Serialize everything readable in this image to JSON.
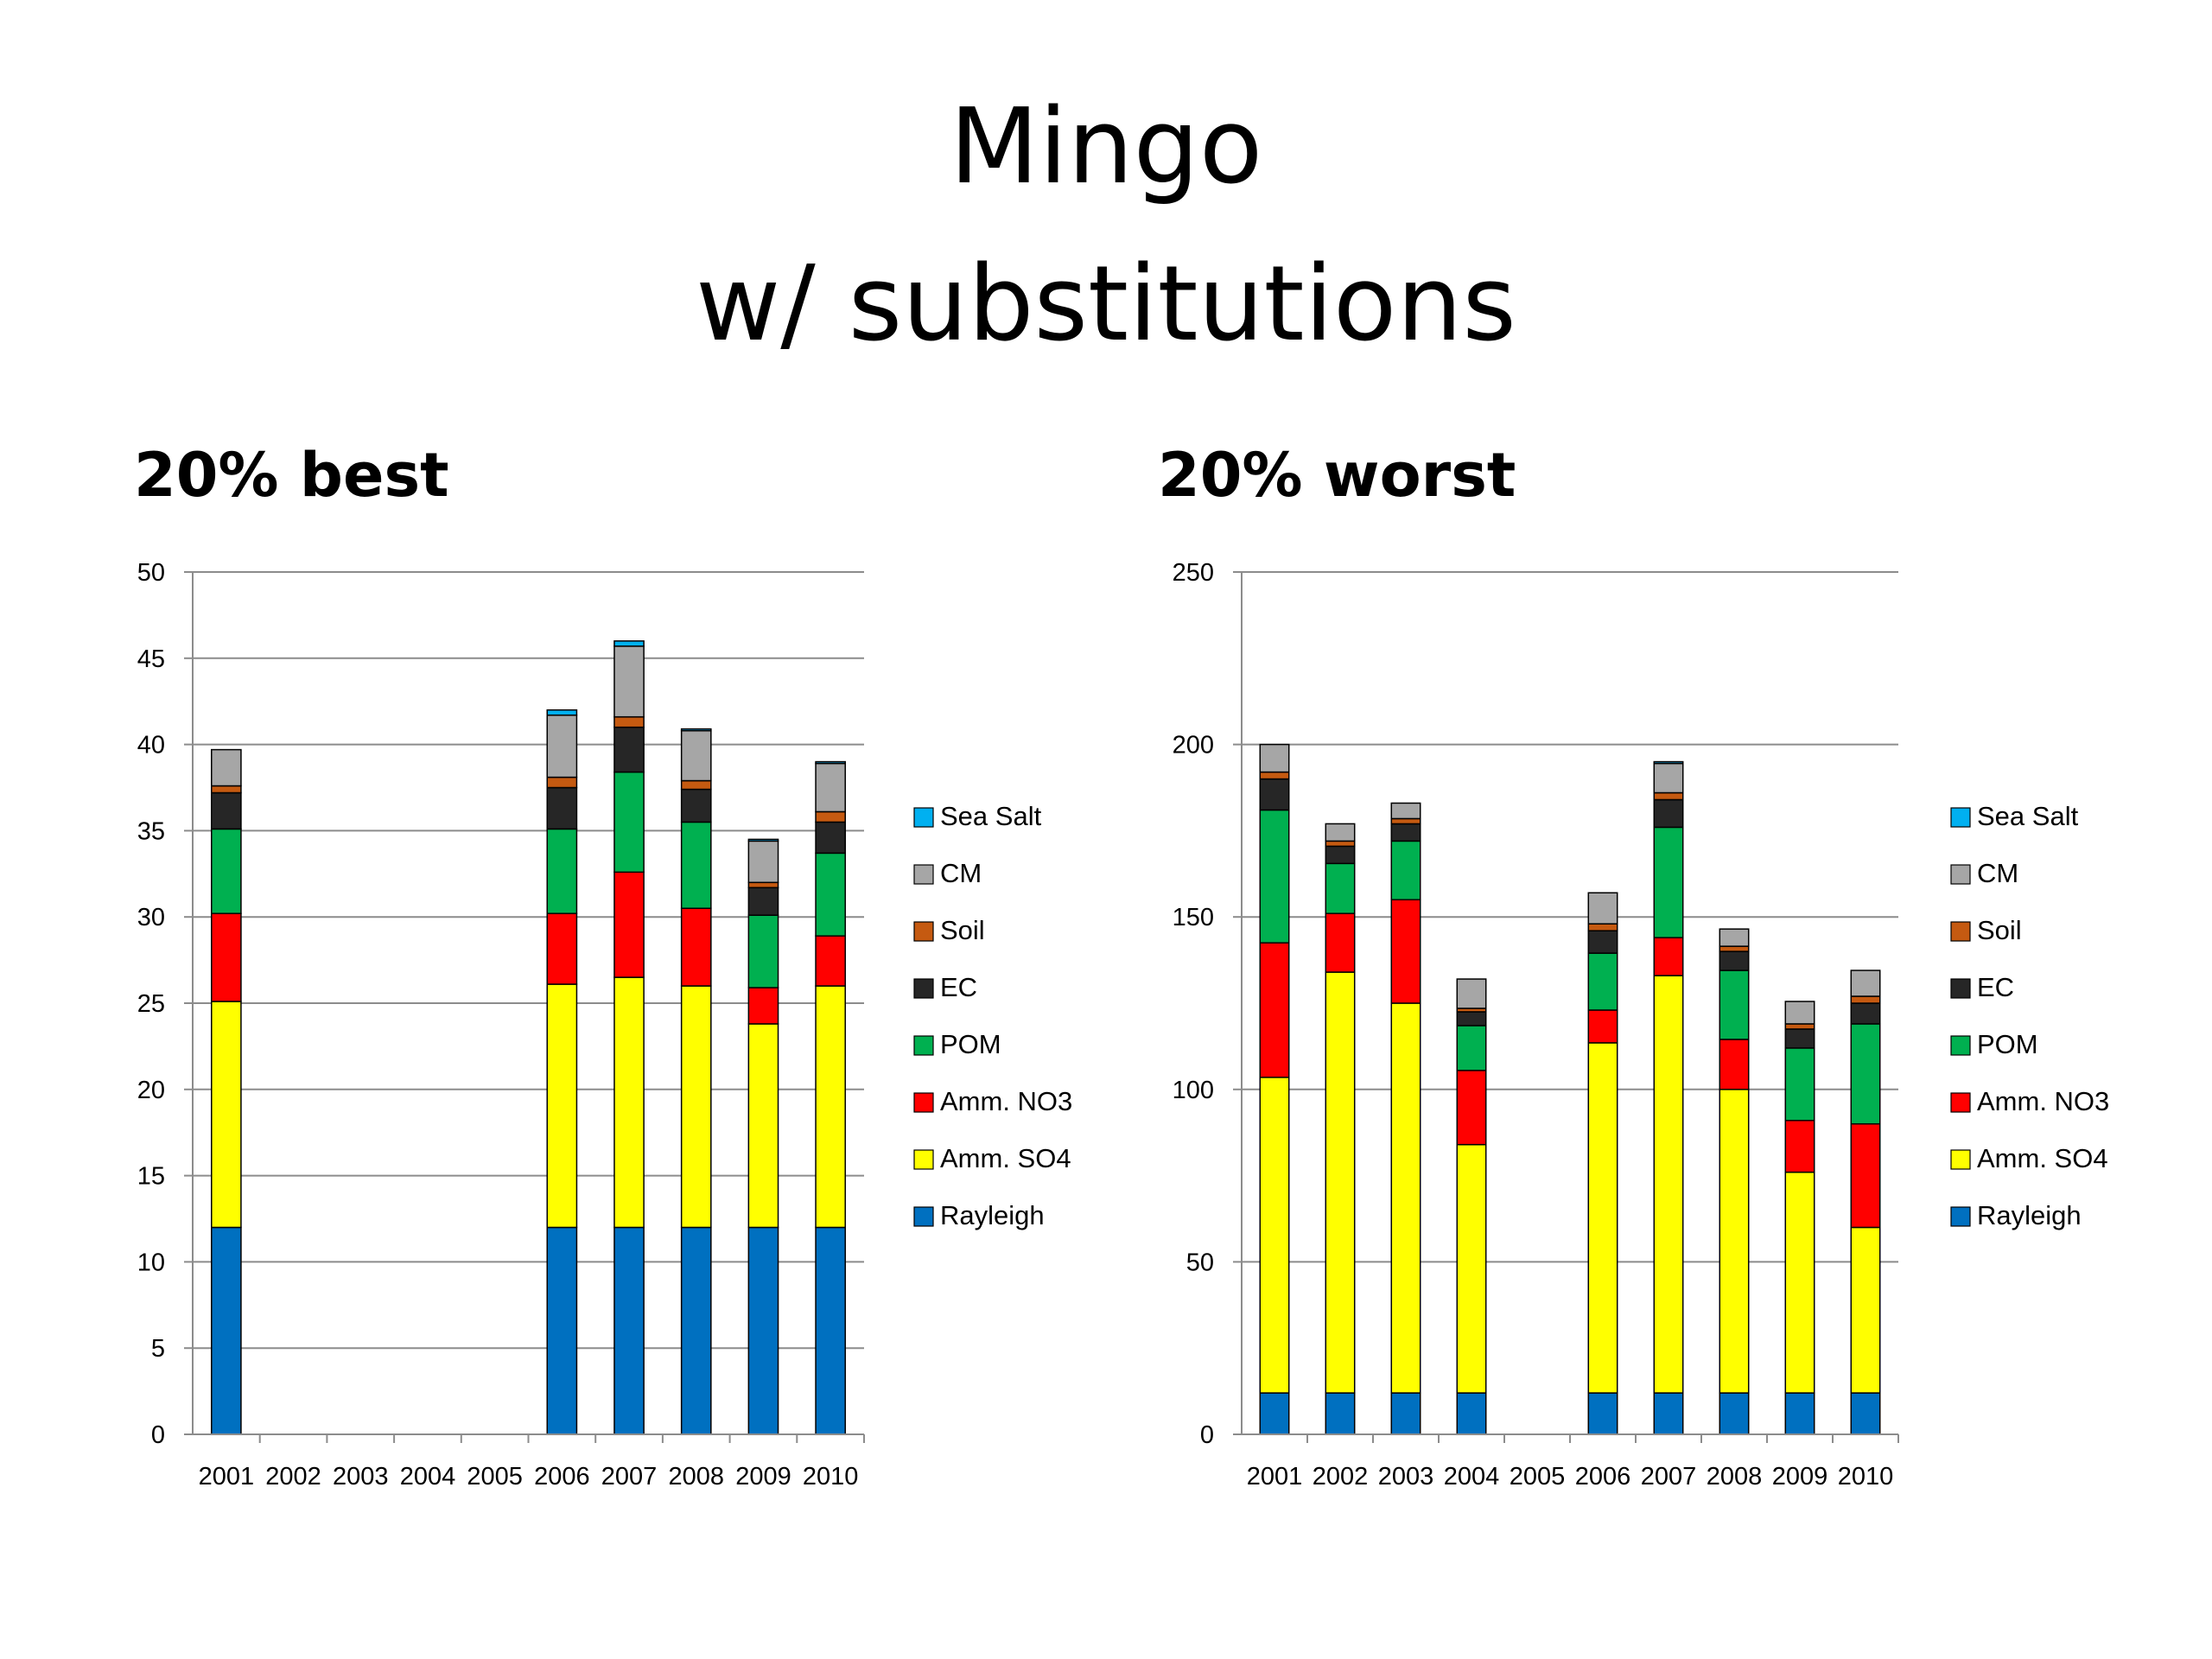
{
  "title_line1": "Mingo",
  "title_line2": "w/ substitutions",
  "chart_data": [
    {
      "type": "bar",
      "stacked": true,
      "title": "20% best",
      "categories": [
        "2001",
        "2002",
        "2003",
        "2004",
        "2005",
        "2006",
        "2007",
        "2008",
        "2009",
        "2010"
      ],
      "ylim": [
        0,
        50
      ],
      "yticks": [
        0,
        5,
        10,
        15,
        20,
        25,
        30,
        35,
        40,
        45,
        50
      ],
      "grid": true,
      "legend_position": "right",
      "series": [
        {
          "name": "Rayleigh",
          "color": "#0070C0",
          "values": [
            12,
            null,
            null,
            null,
            null,
            12,
            12,
            12,
            12,
            12
          ]
        },
        {
          "name": "Amm. SO4",
          "color": "#FFFF00",
          "values": [
            13.1,
            null,
            null,
            null,
            null,
            14.1,
            14.5,
            14.0,
            11.8,
            14.0
          ]
        },
        {
          "name": "Amm. NO3",
          "color": "#FF0000",
          "values": [
            5.1,
            null,
            null,
            null,
            null,
            4.1,
            6.1,
            4.5,
            2.1,
            2.9
          ]
        },
        {
          "name": "POM",
          "color": "#00B050",
          "values": [
            4.9,
            null,
            null,
            null,
            null,
            4.9,
            5.8,
            5.0,
            4.2,
            4.8
          ]
        },
        {
          "name": "EC",
          "color": "#262626",
          "values": [
            2.1,
            null,
            null,
            null,
            null,
            2.4,
            2.6,
            1.9,
            1.6,
            1.8
          ]
        },
        {
          "name": "Soil",
          "color": "#C55A11",
          "values": [
            0.4,
            null,
            null,
            null,
            null,
            0.6,
            0.6,
            0.5,
            0.3,
            0.6
          ]
        },
        {
          "name": "CM",
          "color": "#A6A6A6",
          "values": [
            2.1,
            null,
            null,
            null,
            null,
            3.6,
            4.1,
            2.9,
            2.4,
            2.8
          ]
        },
        {
          "name": "Sea Salt",
          "color": "#00B0F0",
          "values": [
            0,
            null,
            null,
            null,
            null,
            0.3,
            0.3,
            0.1,
            0.1,
            0.1
          ]
        }
      ]
    },
    {
      "type": "bar",
      "stacked": true,
      "title": "20% worst",
      "categories": [
        "2001",
        "2002",
        "2003",
        "2004",
        "2005",
        "2006",
        "2007",
        "2008",
        "2009",
        "2010"
      ],
      "ylim": [
        0,
        250
      ],
      "yticks": [
        0,
        50,
        100,
        150,
        200,
        250
      ],
      "grid": true,
      "legend_position": "right",
      "series": [
        {
          "name": "Rayleigh",
          "color": "#0070C0",
          "values": [
            12,
            12,
            12,
            12,
            null,
            12,
            12,
            12,
            12,
            12
          ]
        },
        {
          "name": "Amm. SO4",
          "color": "#FFFF00",
          "values": [
            91.5,
            122,
            113,
            72,
            null,
            101.5,
            121,
            88,
            64,
            48
          ]
        },
        {
          "name": "Amm. NO3",
          "color": "#FF0000",
          "values": [
            39,
            17,
            30,
            21.5,
            null,
            9.5,
            11,
            14.5,
            15,
            30
          ]
        },
        {
          "name": "POM",
          "color": "#00B050",
          "values": [
            38.5,
            14.5,
            17,
            13,
            null,
            16.5,
            32,
            20,
            21,
            29
          ]
        },
        {
          "name": "EC",
          "color": "#262626",
          "values": [
            9,
            5,
            5,
            4,
            null,
            6.5,
            8,
            5.5,
            5.5,
            6
          ]
        },
        {
          "name": "Soil",
          "color": "#C55A11",
          "values": [
            2,
            1.5,
            1.5,
            1,
            null,
            2,
            2,
            1.5,
            1.5,
            2
          ]
        },
        {
          "name": "CM",
          "color": "#A6A6A6",
          "values": [
            8,
            5,
            4.5,
            8.5,
            null,
            9,
            8.5,
            5,
            6.5,
            7.5
          ]
        },
        {
          "name": "Sea Salt",
          "color": "#00B0F0",
          "values": [
            0,
            0,
            0,
            0,
            null,
            0,
            0.5,
            0,
            0,
            0
          ]
        }
      ]
    }
  ]
}
